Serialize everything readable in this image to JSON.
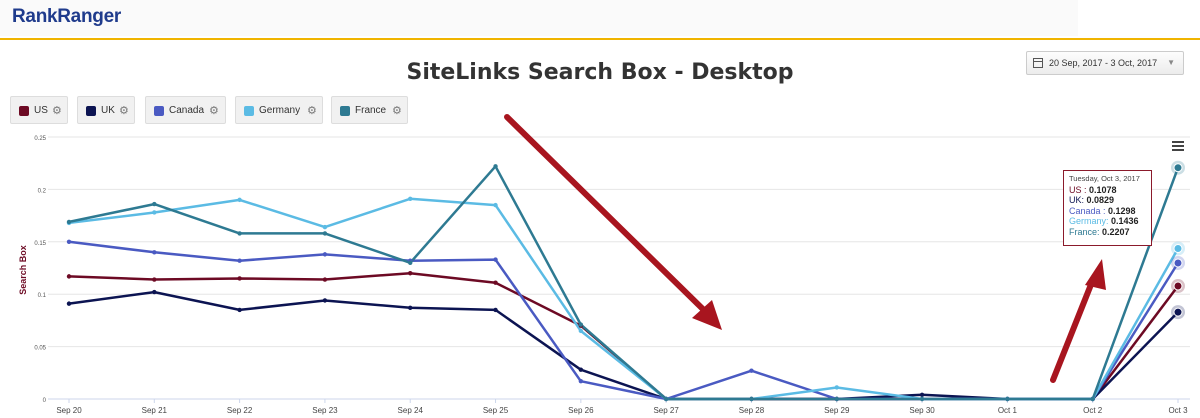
{
  "header": {
    "logo_part1": "Rank",
    "logo_part2": "Ranger"
  },
  "date_range": {
    "label": "20 Sep, 2017 - 3 Oct, 2017"
  },
  "legend": [
    {
      "label": "US",
      "color": "#6d0a24"
    },
    {
      "label": "UK",
      "color": "#0c1452"
    },
    {
      "label": "Canada",
      "color": "#4a5ac2"
    },
    {
      "label": "Germany",
      "color": "#5bbbe4"
    },
    {
      "label": "France",
      "color": "#2e7a92"
    }
  ],
  "tooltip": {
    "date": "Tuesday, Oct 3, 2017",
    "rows": [
      {
        "label": "US : ",
        "value": "0.1078",
        "color": "#6d0a24"
      },
      {
        "label": "UK: ",
        "value": "0.0829",
        "color": "#0c1452"
      },
      {
        "label": "Canada : ",
        "value": "0.1298",
        "color": "#4a5ac2"
      },
      {
        "label": "Germany: ",
        "value": "0.1436",
        "color": "#5bbbe4"
      },
      {
        "label": "France: ",
        "value": "0.2207",
        "color": "#2e7a92"
      }
    ]
  },
  "chart_data": {
    "type": "line",
    "title": "SiteLinks Search Box - Desktop",
    "ylabel": "Search Box",
    "xlabel": "",
    "categories": [
      "Sep 20",
      "Sep 21",
      "Sep 22",
      "Sep 23",
      "Sep 24",
      "Sep 25",
      "Sep 26",
      "Sep 27",
      "Sep 28",
      "Sep 29",
      "Sep 30",
      "Oct 1",
      "Oct 2",
      "Oct 3"
    ],
    "ylim": [
      0,
      0.25
    ],
    "yticks": [
      "0",
      "0.05",
      "0.1",
      "0.15",
      "0.2",
      "0.25"
    ],
    "ytick_values": [
      0,
      0.05,
      0.1,
      0.15,
      0.2,
      0.25
    ],
    "grid": true,
    "series": [
      {
        "name": "US",
        "color": "#6d0a24",
        "values": [
          0.117,
          0.114,
          0.115,
          0.114,
          0.12,
          0.111,
          0.07,
          0.0,
          0.0,
          0.0,
          0.0,
          0.0,
          0.0,
          0.1078
        ]
      },
      {
        "name": "UK",
        "color": "#0c1452",
        "values": [
          0.091,
          0.102,
          0.085,
          0.094,
          0.087,
          0.085,
          0.028,
          0.0,
          0.0,
          0.0,
          0.004,
          0.0,
          0.0,
          0.0829
        ]
      },
      {
        "name": "Canada",
        "color": "#4a5ac2",
        "values": [
          0.15,
          0.14,
          0.132,
          0.138,
          0.132,
          0.133,
          0.017,
          0.0,
          0.027,
          0.0,
          0.0,
          0.0,
          0.0,
          0.1298
        ]
      },
      {
        "name": "Germany",
        "color": "#5bbbe4",
        "values": [
          0.168,
          0.178,
          0.19,
          0.164,
          0.191,
          0.185,
          0.065,
          0.0,
          0.0,
          0.011,
          0.0,
          0.0,
          0.0,
          0.1436
        ]
      },
      {
        "name": "France",
        "color": "#2e7a92",
        "values": [
          0.169,
          0.186,
          0.158,
          0.158,
          0.13,
          0.222,
          0.071,
          0.0,
          0.0,
          0.0,
          0.0,
          0.0,
          0.0,
          0.2207
        ]
      }
    ]
  }
}
